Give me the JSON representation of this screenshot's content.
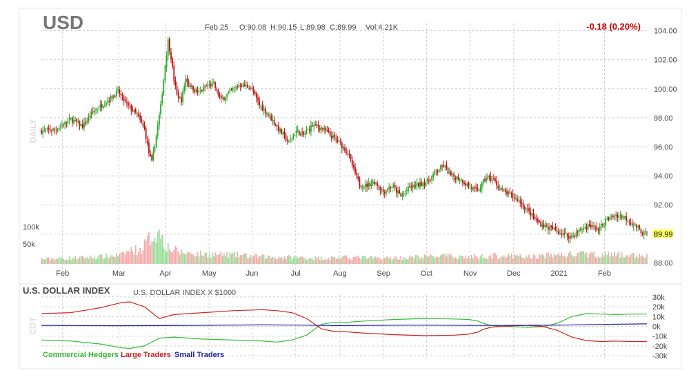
{
  "header": {
    "symbol": "USD",
    "ohlc": {
      "date": "Feb 25",
      "open": "O:90.08",
      "high": "H:90.15",
      "low": "L:89.98",
      "close": "C:89.99",
      "volume": "Vol:4.21K"
    },
    "change": "-0.18 (0.20%)",
    "last_price": "89.99"
  },
  "colors": {
    "up": "#22aa22",
    "down": "#bb1111",
    "volume_up": "#99dd99",
    "volume_down": "#f4aaaa",
    "commercial": "#33bb33",
    "large": "#cc2222",
    "small": "#2222aa",
    "grid": "#cccccc",
    "change": "#cc0000",
    "price_highlight": "#ffff66"
  },
  "chart_data": [
    {
      "type": "candlestick",
      "side_label": "DAILY",
      "ylim": [
        87.5,
        104.5
      ],
      "y_ticks": [
        "104.00",
        "102.00",
        "100.00",
        "98.00",
        "96.00",
        "94.00",
        "92.00",
        "90.00",
        "88.00"
      ],
      "x_tick_labels": [
        "Feb",
        "Mar",
        "Apr",
        "May",
        "Jun",
        "Jul",
        "Aug",
        "Sep",
        "Oct",
        "Nov",
        "Dec",
        "2021",
        "Feb"
      ],
      "volume_labels": [
        "100k",
        "50k"
      ],
      "close_anchors": [
        [
          0,
          97.1
        ],
        [
          10,
          97.2
        ],
        [
          20,
          97.9
        ],
        [
          28,
          97.4
        ],
        [
          35,
          98.4
        ],
        [
          45,
          99.2
        ],
        [
          52,
          99.8
        ],
        [
          58,
          98.9
        ],
        [
          65,
          98.2
        ],
        [
          70,
          97.2
        ],
        [
          73,
          95.6
        ],
        [
          75,
          94.9
        ],
        [
          78,
          96.8
        ],
        [
          81,
          98.8
        ],
        [
          84,
          101.6
        ],
        [
          86,
          103.3
        ],
        [
          88,
          102.2
        ],
        [
          90,
          100.6
        ],
        [
          92,
          99.6
        ],
        [
          95,
          99.2
        ],
        [
          98,
          100.7
        ],
        [
          102,
          100.1
        ],
        [
          107,
          99.7
        ],
        [
          112,
          100.2
        ],
        [
          117,
          100.3
        ],
        [
          122,
          99.2
        ],
        [
          128,
          99.8
        ],
        [
          135,
          100.3
        ],
        [
          142,
          100.1
        ],
        [
          148,
          98.9
        ],
        [
          155,
          98.1
        ],
        [
          162,
          97.1
        ],
        [
          168,
          96.3
        ],
        [
          173,
          97.1
        ],
        [
          178,
          96.8
        ],
        [
          184,
          97.5
        ],
        [
          190,
          97.3
        ],
        [
          196,
          96.8
        ],
        [
          202,
          96.3
        ],
        [
          208,
          95.6
        ],
        [
          212,
          94.4
        ],
        [
          216,
          93.4
        ],
        [
          220,
          93.3
        ],
        [
          226,
          93.6
        ],
        [
          232,
          92.9
        ],
        [
          238,
          93.3
        ],
        [
          244,
          92.6
        ],
        [
          250,
          93.2
        ],
        [
          256,
          93.4
        ],
        [
          262,
          93.6
        ],
        [
          268,
          94.3
        ],
        [
          273,
          94.7
        ],
        [
          278,
          94.0
        ],
        [
          284,
          93.8
        ],
        [
          290,
          93.3
        ],
        [
          296,
          92.9
        ],
        [
          302,
          93.9
        ],
        [
          307,
          93.7
        ],
        [
          312,
          93.0
        ],
        [
          318,
          92.7
        ],
        [
          324,
          92.3
        ],
        [
          330,
          91.6
        ],
        [
          336,
          90.9
        ],
        [
          342,
          90.5
        ],
        [
          348,
          90.3
        ],
        [
          354,
          90.0
        ],
        [
          360,
          89.8
        ],
        [
          366,
          90.3
        ],
        [
          372,
          90.6
        ],
        [
          378,
          90.3
        ],
        [
          384,
          91.0
        ],
        [
          390,
          91.3
        ],
        [
          395,
          91.2
        ],
        [
          400,
          90.8
        ],
        [
          404,
          90.5
        ],
        [
          408,
          90.1
        ],
        [
          411,
          89.99
        ]
      ],
      "volume_levels": [
        [
          0,
          15
        ],
        [
          20,
          18
        ],
        [
          40,
          22
        ],
        [
          55,
          28
        ],
        [
          62,
          45
        ],
        [
          67,
          40
        ],
        [
          72,
          70
        ],
        [
          75,
          85
        ],
        [
          78,
          95
        ],
        [
          81,
          100
        ],
        [
          84,
          60
        ],
        [
          88,
          45
        ],
        [
          95,
          35
        ],
        [
          110,
          30
        ],
        [
          130,
          28
        ],
        [
          150,
          22
        ],
        [
          170,
          20
        ],
        [
          190,
          18
        ],
        [
          210,
          20
        ],
        [
          230,
          18
        ],
        [
          250,
          20
        ],
        [
          270,
          25
        ],
        [
          290,
          22
        ],
        [
          310,
          25
        ],
        [
          330,
          22
        ],
        [
          350,
          28
        ],
        [
          370,
          30
        ],
        [
          390,
          28
        ],
        [
          411,
          25
        ]
      ]
    },
    {
      "type": "line",
      "title": "U.S. DOLLAR INDEX",
      "subtitle": "U.S. DOLLAR INDEX X $1000",
      "side_label": "COT",
      "ylim": [
        -32000,
        32000
      ],
      "y_ticks": [
        "30k",
        "20k",
        "10k",
        "0k",
        "-10k",
        "-20k",
        "-30k"
      ],
      "series": [
        {
          "name": "Commercial Hedgers",
          "x": [
            0,
            20,
            40,
            55,
            60,
            70,
            80,
            90,
            110,
            130,
            150,
            160,
            170,
            180,
            190,
            198,
            206,
            220,
            240,
            260,
            280,
            290,
            296,
            300,
            305,
            312,
            320,
            330,
            340,
            350,
            360,
            370,
            380,
            390,
            400,
            411
          ],
          "y": [
            -14000,
            -15000,
            -18000,
            -22000,
            -22500,
            -20000,
            -12000,
            -11000,
            -13000,
            -14000,
            -15000,
            -16000,
            -14000,
            -9000,
            2000,
            4000,
            4000,
            5500,
            7000,
            8000,
            7500,
            7000,
            5500,
            3000,
            1000,
            0,
            -500,
            -1000,
            -500,
            3000,
            10000,
            13000,
            12500,
            12000,
            12500,
            12500
          ]
        },
        {
          "name": "Large Traders",
          "x": [
            0,
            20,
            40,
            55,
            60,
            70,
            80,
            90,
            110,
            130,
            150,
            160,
            170,
            180,
            190,
            198,
            206,
            220,
            240,
            260,
            280,
            290,
            296,
            300,
            305,
            312,
            320,
            330,
            340,
            350,
            360,
            370,
            380,
            390,
            400,
            411
          ],
          "y": [
            13000,
            14000,
            19000,
            24500,
            25000,
            20000,
            8000,
            12000,
            14000,
            16000,
            17000,
            16000,
            14000,
            8000,
            -2500,
            -5000,
            -5500,
            -7000,
            -8500,
            -9500,
            -9000,
            -8000,
            -6000,
            -3000,
            -1000,
            0,
            500,
            1000,
            0,
            -4000,
            -11000,
            -14500,
            -15500,
            -15000,
            -15500,
            -15500
          ]
        },
        {
          "name": "Small Traders",
          "x": [
            0,
            50,
            100,
            150,
            180,
            200,
            250,
            300,
            350,
            380,
            411
          ],
          "y": [
            1000,
            600,
            900,
            1500,
            1200,
            800,
            1200,
            900,
            1200,
            2000,
            2500
          ]
        }
      ]
    }
  ]
}
